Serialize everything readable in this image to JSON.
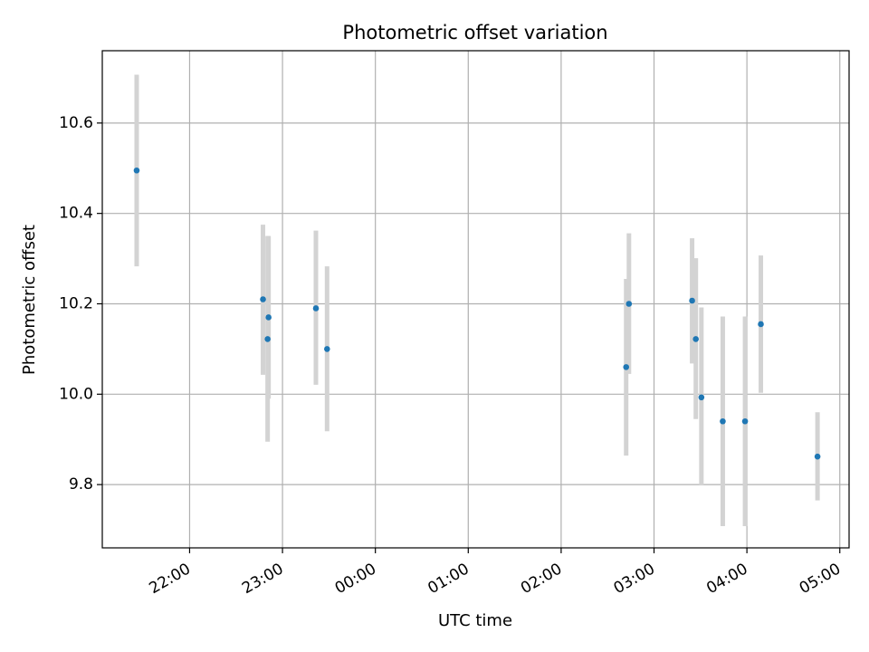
{
  "chart_data": {
    "type": "scatter",
    "title": "Photometric offset variation",
    "xlabel": "UTC time",
    "ylabel": "Photometric offset",
    "x_unit": "UTC time of day (hours past midnight, times before 00:00 are negative)",
    "xlim": [
      -2.94,
      5.1
    ],
    "ylim": [
      9.66,
      10.76
    ],
    "x_ticks": [
      {
        "value": -2,
        "label": "22:00"
      },
      {
        "value": -1,
        "label": "23:00"
      },
      {
        "value": 0,
        "label": "00:00"
      },
      {
        "value": 1,
        "label": "01:00"
      },
      {
        "value": 2,
        "label": "02:00"
      },
      {
        "value": 3,
        "label": "03:00"
      },
      {
        "value": 4,
        "label": "04:00"
      },
      {
        "value": 5,
        "label": "05:00"
      }
    ],
    "y_ticks": [
      {
        "value": 9.8,
        "label": "9.8"
      },
      {
        "value": 10.0,
        "label": "10.0"
      },
      {
        "value": 10.2,
        "label": "10.2"
      },
      {
        "value": 10.4,
        "label": "10.4"
      },
      {
        "value": 10.6,
        "label": "10.6"
      }
    ],
    "grid": true,
    "points": [
      {
        "x": -2.57,
        "y": 10.495,
        "ylow": 10.283,
        "yhigh": 10.707
      },
      {
        "x": -1.21,
        "y": 10.21,
        "ylow": 10.043,
        "yhigh": 10.375
      },
      {
        "x": -1.15,
        "y": 10.17,
        "ylow": 9.99,
        "yhigh": 10.35
      },
      {
        "x": -1.16,
        "y": 10.122,
        "ylow": 9.895,
        "yhigh": 10.35
      },
      {
        "x": -0.64,
        "y": 10.19,
        "ylow": 10.021,
        "yhigh": 10.362
      },
      {
        "x": -0.52,
        "y": 10.1,
        "ylow": 9.918,
        "yhigh": 10.283
      },
      {
        "x": 2.7,
        "y": 10.06,
        "ylow": 9.864,
        "yhigh": 10.255
      },
      {
        "x": 2.73,
        "y": 10.2,
        "ylow": 10.045,
        "yhigh": 10.356
      },
      {
        "x": 3.41,
        "y": 10.207,
        "ylow": 10.068,
        "yhigh": 10.345
      },
      {
        "x": 3.45,
        "y": 10.122,
        "ylow": 9.945,
        "yhigh": 10.301
      },
      {
        "x": 3.51,
        "y": 9.993,
        "ylow": 9.798,
        "yhigh": 10.192
      },
      {
        "x": 3.74,
        "y": 9.94,
        "ylow": 9.708,
        "yhigh": 10.172
      },
      {
        "x": 3.98,
        "y": 9.94,
        "ylow": 9.708,
        "yhigh": 10.172
      },
      {
        "x": 4.15,
        "y": 10.155,
        "ylow": 10.003,
        "yhigh": 10.307
      },
      {
        "x": 4.76,
        "y": 9.862,
        "ylow": 9.765,
        "yhigh": 9.96
      }
    ],
    "marker_color": "#1f77b4",
    "errorbar_color": "#d3d3d3",
    "grid_color": "#b0b0b0"
  }
}
